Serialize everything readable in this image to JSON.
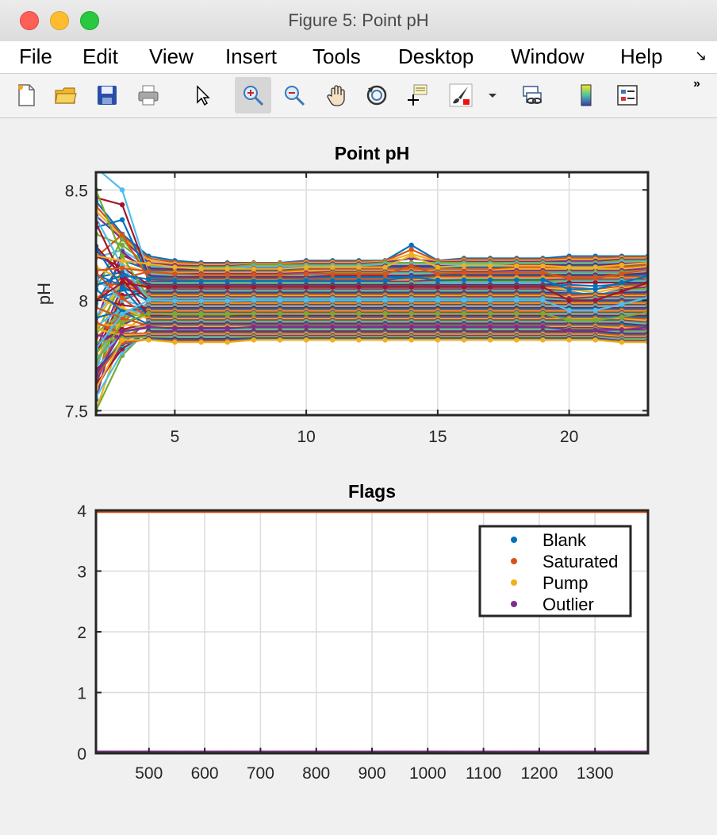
{
  "window": {
    "title": "Figure 5: Point pH"
  },
  "menu": [
    "File",
    "Edit",
    "View",
    "Insert",
    "Tools",
    "Desktop",
    "Window",
    "Help"
  ],
  "toolbar": {
    "buttons": [
      "new-figure-icon",
      "open-file-icon",
      "save-icon",
      "print-icon",
      "pointer-icon",
      "zoom-in-icon",
      "zoom-out-icon",
      "pan-hand-icon",
      "rotate-3d-icon",
      "data-cursor-icon",
      "brush-icon",
      "link-plot-icon",
      "colorbar-icon",
      "legend-icon"
    ]
  },
  "chart_data": [
    {
      "type": "line",
      "title": "Point pH",
      "xlabel": "",
      "ylabel": "pH",
      "xlim": [
        2,
        23
      ],
      "ylim": [
        7.48,
        8.58
      ],
      "xticks": [
        5,
        10,
        15,
        20
      ],
      "yticks": [
        7.5,
        8,
        8.5
      ],
      "grid": true,
      "series_description": "many profiles",
      "x": [
        2,
        3,
        4,
        5,
        6,
        7,
        8,
        9,
        10,
        11,
        12,
        13,
        14,
        15,
        16,
        17,
        18,
        19,
        20,
        21,
        22,
        23
      ],
      "series": [
        {
          "values": [
            8.45,
            8.3,
            8.2,
            8.18,
            8.17,
            8.17,
            8.17,
            8.17,
            8.18,
            8.18,
            8.18,
            8.18,
            8.25,
            8.18,
            8.19,
            8.19,
            8.19,
            8.19,
            8.2,
            8.2,
            8.2,
            8.2
          ]
        },
        {
          "values": [
            8.3,
            8.25,
            8.16,
            8.15,
            8.15,
            8.15,
            8.16,
            8.16,
            8.16,
            8.16,
            8.16,
            8.17,
            8.17,
            8.17,
            8.17,
            8.17,
            8.17,
            8.17,
            8.17,
            8.17,
            8.18,
            8.18
          ]
        },
        {
          "values": [
            7.6,
            8.1,
            8.13,
            8.13,
            8.13,
            8.13,
            8.13,
            8.13,
            8.14,
            8.14,
            8.14,
            8.14,
            8.14,
            8.14,
            8.14,
            8.14,
            8.15,
            8.15,
            8.15,
            8.15,
            8.15,
            8.16
          ]
        },
        {
          "values": [
            8.6,
            8.5,
            8.12,
            8.11,
            8.11,
            8.11,
            8.11,
            8.11,
            8.11,
            8.12,
            8.12,
            8.12,
            8.12,
            8.12,
            8.12,
            8.12,
            8.12,
            8.12,
            8.12,
            8.12,
            8.12,
            8.13
          ]
        },
        {
          "values": [
            7.7,
            8.05,
            8.09,
            8.09,
            8.09,
            8.09,
            8.09,
            8.09,
            8.09,
            8.09,
            8.09,
            8.09,
            8.09,
            8.1,
            8.1,
            8.1,
            8.1,
            8.1,
            8.1,
            8.1,
            8.1,
            8.1
          ]
        },
        {
          "values": [
            8.2,
            8.15,
            8.07,
            8.07,
            8.07,
            8.07,
            8.07,
            8.07,
            8.07,
            8.07,
            8.07,
            8.07,
            8.07,
            8.07,
            8.07,
            8.07,
            8.07,
            8.07,
            8.08,
            8.08,
            8.08,
            8.08
          ]
        },
        {
          "values": [
            7.55,
            8.0,
            8.05,
            8.05,
            8.05,
            8.05,
            8.05,
            8.05,
            8.05,
            8.05,
            8.05,
            8.05,
            8.05,
            8.05,
            8.05,
            8.05,
            8.05,
            8.05,
            8.04,
            8.02,
            8.05,
            8.06
          ]
        },
        {
          "values": [
            8.0,
            8.05,
            8.03,
            8.03,
            8.03,
            8.03,
            8.03,
            8.03,
            8.03,
            8.03,
            8.03,
            8.03,
            8.03,
            8.03,
            8.03,
            8.03,
            8.03,
            8.03,
            8.03,
            8.03,
            8.03,
            8.03
          ]
        },
        {
          "values": [
            8.5,
            8.2,
            8.01,
            8.01,
            8.01,
            8.01,
            8.01,
            8.01,
            8.01,
            8.01,
            8.01,
            8.01,
            8.01,
            8.01,
            8.01,
            8.01,
            8.01,
            8.01,
            8.0,
            8.01,
            8.01,
            8.01
          ]
        },
        {
          "values": [
            7.65,
            7.9,
            7.99,
            7.99,
            7.99,
            7.99,
            7.99,
            7.99,
            7.99,
            7.99,
            7.99,
            7.99,
            7.99,
            7.99,
            7.99,
            7.99,
            7.99,
            7.99,
            7.99,
            7.99,
            7.99,
            7.99
          ]
        },
        {
          "values": [
            8.1,
            8.0,
            7.97,
            7.97,
            7.97,
            7.97,
            7.97,
            7.97,
            7.97,
            7.97,
            7.97,
            7.97,
            7.97,
            7.97,
            7.97,
            7.97,
            7.97,
            7.97,
            7.97,
            7.97,
            7.97,
            7.97
          ]
        },
        {
          "values": [
            7.5,
            7.85,
            7.95,
            7.95,
            7.95,
            7.95,
            7.95,
            7.95,
            7.95,
            7.95,
            7.95,
            7.95,
            7.95,
            7.95,
            7.95,
            7.95,
            7.95,
            7.95,
            7.95,
            7.95,
            7.95,
            7.95
          ]
        },
        {
          "values": [
            8.35,
            8.1,
            7.93,
            7.93,
            7.93,
            7.93,
            7.93,
            7.93,
            7.93,
            7.93,
            7.93,
            7.93,
            7.93,
            7.93,
            7.93,
            7.93,
            7.93,
            7.93,
            7.93,
            7.93,
            7.93,
            7.93
          ]
        },
        {
          "values": [
            7.6,
            7.8,
            7.91,
            7.91,
            7.91,
            7.91,
            7.91,
            7.91,
            7.91,
            7.91,
            7.91,
            7.91,
            7.91,
            7.91,
            7.91,
            7.91,
            7.91,
            7.91,
            7.91,
            7.91,
            7.91,
            7.9
          ]
        },
        {
          "values": [
            8.05,
            7.95,
            7.89,
            7.89,
            7.89,
            7.89,
            7.89,
            7.89,
            7.89,
            7.89,
            7.89,
            7.89,
            7.89,
            7.89,
            7.89,
            7.89,
            7.89,
            7.89,
            7.89,
            7.89,
            7.89,
            7.88
          ]
        },
        {
          "values": [
            7.5,
            7.75,
            7.87,
            7.87,
            7.87,
            7.87,
            7.87,
            7.87,
            7.87,
            7.87,
            7.87,
            7.87,
            7.87,
            7.87,
            7.87,
            7.87,
            7.87,
            7.87,
            7.87,
            7.87,
            7.86,
            7.86
          ]
        },
        {
          "values": [
            7.9,
            7.85,
            7.85,
            7.85,
            7.85,
            7.85,
            7.85,
            7.85,
            7.85,
            7.85,
            7.85,
            7.85,
            7.85,
            7.85,
            7.85,
            7.85,
            7.85,
            7.85,
            7.85,
            7.85,
            7.84,
            7.84
          ]
        },
        {
          "values": [
            7.7,
            7.8,
            7.83,
            7.83,
            7.83,
            7.83,
            7.83,
            7.83,
            7.83,
            7.83,
            7.83,
            7.83,
            7.83,
            7.83,
            7.83,
            7.83,
            7.83,
            7.83,
            7.83,
            7.83,
            7.82,
            7.82
          ]
        },
        {
          "values": [
            7.6,
            7.82,
            7.82,
            7.81,
            7.81,
            7.81,
            7.82,
            7.82,
            7.82,
            7.82,
            7.82,
            7.82,
            7.82,
            7.82,
            7.82,
            7.82,
            7.82,
            7.82,
            7.82,
            7.82,
            7.81,
            7.81
          ]
        },
        {
          "values": [
            8.0,
            8.08,
            8.06,
            8.06,
            8.06,
            8.06,
            8.06,
            8.06,
            8.06,
            8.06,
            8.06,
            8.06,
            8.06,
            8.06,
            8.06,
            8.06,
            8.06,
            8.06,
            8.0,
            8.0,
            8.04,
            8.08
          ]
        }
      ]
    },
    {
      "type": "scatter",
      "title": "Flags",
      "xlabel": "",
      "ylabel": "",
      "xlim": [
        405,
        1395
      ],
      "ylim": [
        0,
        4
      ],
      "xticks": [
        500,
        600,
        700,
        800,
        900,
        1000,
        1100,
        1200,
        1300
      ],
      "yticks": [
        0,
        1,
        2,
        3,
        4
      ],
      "grid": true,
      "legend": {
        "placement": "top-right",
        "entries": [
          "Blank",
          "Saturated",
          "Pump",
          "Outlier"
        ]
      },
      "series": [
        {
          "name": "Blank",
          "color": "#0072bd",
          "y": 0
        },
        {
          "name": "Saturated",
          "color": "#d95319",
          "y": 4
        },
        {
          "name": "Pump",
          "color": "#edb120",
          "y": 0
        },
        {
          "name": "Outlier",
          "color": "#7e2f8e",
          "y": 0
        }
      ],
      "x_range": [
        405,
        1395
      ]
    }
  ]
}
